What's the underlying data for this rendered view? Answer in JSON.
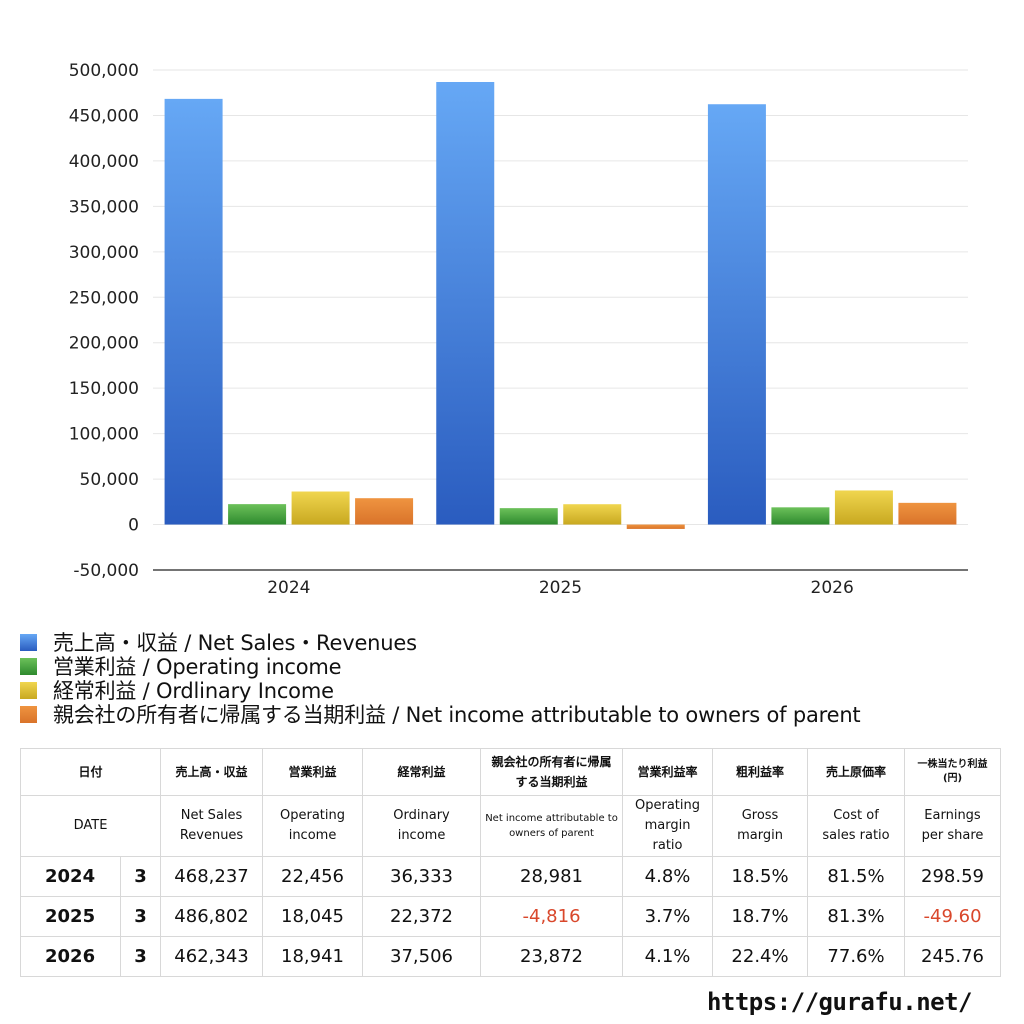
{
  "chart_data": {
    "type": "bar",
    "categories": [
      "2024",
      "2025",
      "2026"
    ],
    "series": [
      {
        "name": "売上高・収益 / Net Sales・Revenues",
        "values": [
          468237,
          486802,
          462343
        ],
        "color_top": "#66a8f5",
        "color_bottom": "#2a5cbf"
      },
      {
        "name": "営業利益 / Operating income",
        "values": [
          22456,
          18045,
          18941
        ],
        "color_top": "#6cc15a",
        "color_bottom": "#2e8a2e"
      },
      {
        "name": "経常利益 / Ordlinary Income",
        "values": [
          36333,
          22372,
          37506
        ],
        "color_top": "#f0d64f",
        "color_bottom": "#c8a820"
      },
      {
        "name": "親会社の所有者に帰属する当期利益 / Net income attributable to owners of parent",
        "values": [
          28981,
          -4816,
          23872
        ],
        "color_top": "#ef9440",
        "color_bottom": "#d9732a"
      }
    ],
    "yticks": [
      "500,000",
      "450,000",
      "400,000",
      "350,000",
      "300,000",
      "250,000",
      "200,000",
      "150,000",
      "100,000",
      "50,000",
      "0",
      "-50,000"
    ],
    "ylim": [
      -50000,
      500000
    ],
    "grid": true,
    "legend": "bottom"
  },
  "table": {
    "header_jp": [
      "日付",
      "売上高・収益",
      "営業利益",
      "経常利益",
      "親会社の所有者に帰属する当期利益",
      "営業利益率",
      "粗利益率",
      "売上原価率",
      "一株当たり利益(円)"
    ],
    "header_en": [
      "DATE",
      "Net Sales Revenues",
      "Operating income",
      "Ordinary income",
      "Net income attributable to owners of parent",
      "Operating margin ratio",
      "Gross margin",
      "Cost of sales ratio",
      "Earnings per share"
    ],
    "rows": [
      {
        "year": "2024",
        "month": "3",
        "sales": "468,237",
        "op": "22,456",
        "ord": "36,333",
        "net": "28,981",
        "opm": "4.8%",
        "gm": "18.5%",
        "cos": "81.5%",
        "eps": "298.59"
      },
      {
        "year": "2025",
        "month": "3",
        "sales": "486,802",
        "op": "18,045",
        "ord": "22,372",
        "net": "-4,816",
        "opm": "3.7%",
        "gm": "18.7%",
        "cos": "81.3%",
        "eps": "-49.60"
      },
      {
        "year": "2026",
        "month": "3",
        "sales": "462,343",
        "op": "18,941",
        "ord": "37,506",
        "net": "23,872",
        "opm": "4.1%",
        "gm": "22.4%",
        "cos": "77.6%",
        "eps": "245.76"
      }
    ]
  },
  "source_url": "https://gurafu.net/"
}
